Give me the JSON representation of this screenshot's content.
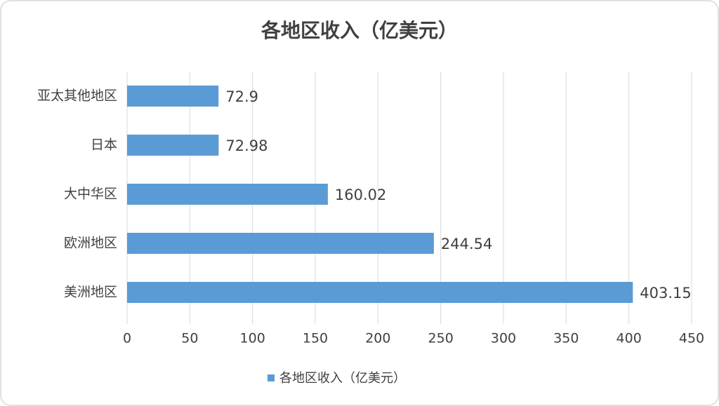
{
  "chart_data": {
    "type": "bar",
    "horizontal": true,
    "title": "各地区收入（亿美元）",
    "categories": [
      "亚太其他地区",
      "日本",
      "大中华区",
      "欧洲地区",
      "美洲地区"
    ],
    "series": [
      {
        "name": "各地区收入（亿美元）",
        "color": "#5b9bd5",
        "values": [
          72.9,
          72.98,
          160.02,
          244.54,
          403.15
        ]
      }
    ],
    "xlim": [
      0,
      450
    ],
    "xticks": [
      0,
      50,
      100,
      150,
      200,
      250,
      300,
      350,
      400,
      450
    ],
    "grid": true,
    "legend": "bottom"
  }
}
